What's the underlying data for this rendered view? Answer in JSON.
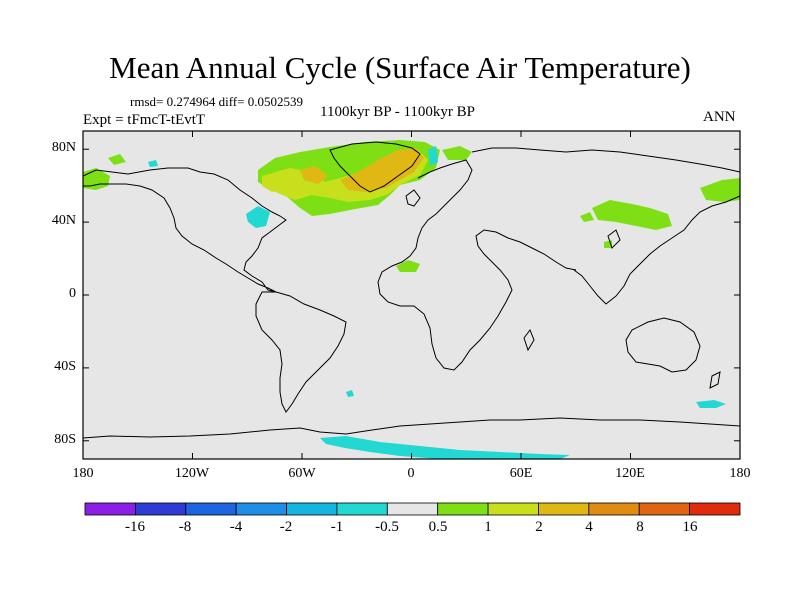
{
  "title": "Mean Annual Cycle (Surface Air Temperature)",
  "stats": "rmsd= 0.274964 diff= 0.0502539",
  "experiment": "Expt = tFmcT-tEvtT",
  "period": "1100kyr BP - 1100kyr BP",
  "season": "ANN",
  "axes": {
    "latitude_labels": [
      "80N",
      "40N",
      "0",
      "40S",
      "80S"
    ],
    "latitude_values": [
      80,
      40,
      0,
      -40,
      -80
    ],
    "longitude_labels": [
      "180",
      "120W",
      "60W",
      "0",
      "60E",
      "120E",
      "180"
    ],
    "longitude_values": [
      -180,
      -120,
      -60,
      0,
      60,
      120,
      180
    ]
  },
  "colorbar": {
    "labels": [
      "-16",
      "-8",
      "-4",
      "-2",
      "-1",
      "-0.5",
      "0.5",
      "1",
      "2",
      "4",
      "8",
      "16"
    ],
    "colors": [
      "#8c1fe6",
      "#2e3bd6",
      "#1f64e0",
      "#1f8ee6",
      "#16b4e0",
      "#22d8d2",
      "#e6e6e6",
      "#7ee014",
      "#c8e01c",
      "#e0b814",
      "#e08c12",
      "#e06412",
      "#e02c0c"
    ]
  },
  "colors": {
    "background_field": "#e6e6e6",
    "coastline": "#000000",
    "positive_small": "#7ee014",
    "positive_mid": "#c8e01c",
    "positive_high": "#e0b814",
    "negative_small": "#22d8d2",
    "negative_mid": "#16b4e0"
  }
}
